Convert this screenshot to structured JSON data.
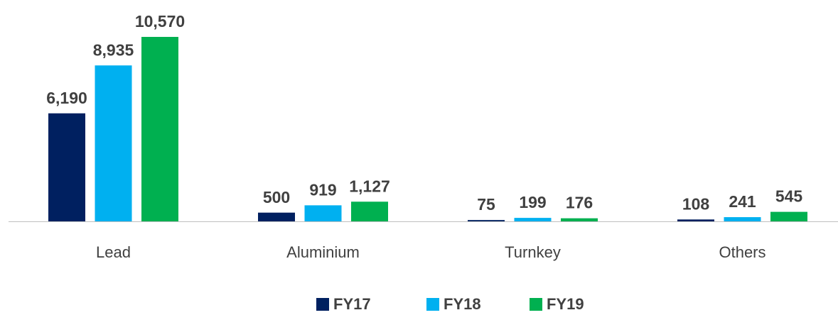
{
  "chart_data": {
    "type": "bar",
    "categories": [
      "Lead",
      "Aluminium",
      "Turnkey",
      "Others"
    ],
    "series": [
      {
        "name": "FY17",
        "color": "#002060",
        "values": [
          6190,
          500,
          75,
          108
        ],
        "value_labels": [
          "6,190",
          "500",
          "75",
          "108"
        ]
      },
      {
        "name": "FY18",
        "color": "#00b0f0",
        "values": [
          8935,
          919,
          199,
          241
        ],
        "value_labels": [
          "8,935",
          "919",
          "199",
          "241"
        ]
      },
      {
        "name": "FY19",
        "color": "#00b050",
        "values": [
          10570,
          1127,
          176,
          545
        ],
        "value_labels": [
          "10,570",
          "1,127",
          "176",
          "545"
        ]
      }
    ],
    "legend": "bottom"
  }
}
